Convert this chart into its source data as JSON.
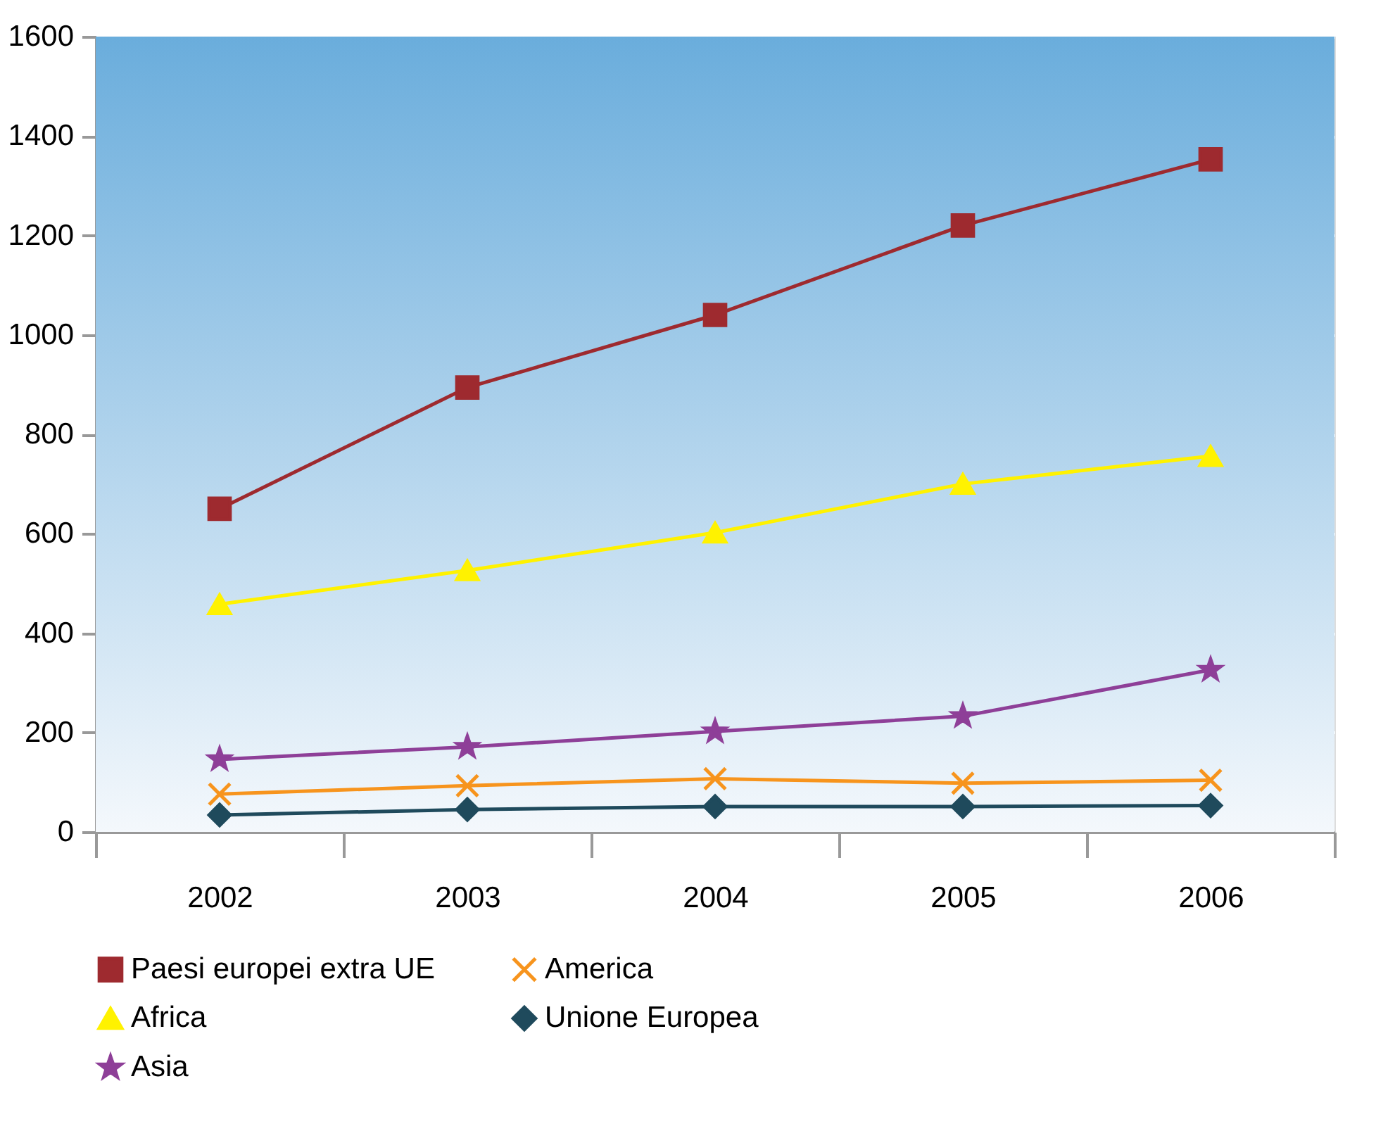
{
  "chart_data": {
    "type": "line",
    "categories": [
      "2002",
      "2003",
      "2004",
      "2005",
      "2006"
    ],
    "series": [
      {
        "name": "Paesi europei extra UE",
        "color": "#9e2a2f",
        "marker": "square",
        "values": [
          650,
          894,
          1040,
          1220,
          1353
        ]
      },
      {
        "name": "America",
        "color": "#f7941d",
        "marker": "cross",
        "values": [
          76,
          93,
          107,
          98,
          104
        ]
      },
      {
        "name": "Africa",
        "color": "#fff200",
        "marker": "triangle",
        "values": [
          458,
          526,
          602,
          700,
          756
        ]
      },
      {
        "name": "Unione Europea",
        "color": "#1f4a5c",
        "marker": "diamond",
        "values": [
          34,
          45,
          51,
          51,
          53
        ]
      },
      {
        "name": "Asia",
        "color": "#8e3f98",
        "marker": "star",
        "values": [
          146,
          171,
          202,
          233,
          326
        ]
      }
    ],
    "ylim": [
      0,
      1600
    ],
    "yticks": [
      0,
      200,
      400,
      600,
      800,
      1000,
      1200,
      1400,
      1600
    ],
    "grid": "y",
    "legend": "bottom",
    "line_style": "solid"
  }
}
